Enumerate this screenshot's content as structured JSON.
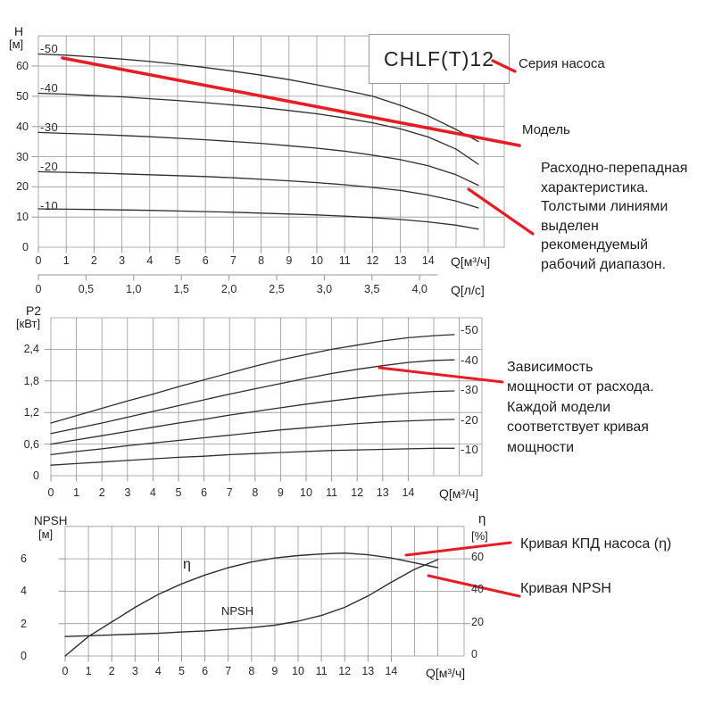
{
  "title_box": {
    "label": "CHLF(T)12"
  },
  "annotations": {
    "series": "Серия насоса",
    "model": "Модель",
    "flow_note": "Расходно-перепадная\nхарактеристика.\nТолстыми линиями\nвыделен\nрекомендуемый\nрабочий диапазон.",
    "power_note": "Зависимость\nмощности от расхода.\nКаждой модели\nсоответствует кривая\nмощности",
    "efficiency_note": "Кривая КПД насоса (η)",
    "npsh_note": "Кривая NPSH"
  },
  "axes": {
    "top": {
      "y_label": "H",
      "y_unit": "[м]",
      "x_unit": "Q[м³/ч]",
      "x2_unit": "Q[л/с]",
      "y_ticks": [
        "0",
        "10",
        "20",
        "30",
        "40",
        "50",
        "60"
      ],
      "x_ticks": [
        "0",
        "1",
        "2",
        "3",
        "4",
        "5",
        "6",
        "7",
        "8",
        "9",
        "10",
        "11",
        "12",
        "13",
        "14"
      ],
      "x2_ticks": [
        "0",
        "0,5",
        "1,0",
        "1,5",
        "2,0",
        "2,5",
        "3,0",
        "3,5",
        "4,0"
      ],
      "curve_labels": [
        "-50",
        "-40",
        "-30",
        "-20",
        "-10"
      ]
    },
    "middle": {
      "y_label": "P2",
      "y_unit": "[кВт]",
      "x_unit": "Q[м³/ч]",
      "y_ticks": [
        "0",
        "0,6",
        "1,2",
        "1,8",
        "2,4"
      ],
      "x_ticks": [
        "0",
        "1",
        "2",
        "3",
        "4",
        "5",
        "6",
        "7",
        "8",
        "9",
        "10",
        "11",
        "12",
        "13",
        "14"
      ],
      "curve_labels": [
        "-50",
        "-40",
        "-30",
        "-20",
        "-10"
      ]
    },
    "bottom": {
      "y_label": "NPSH",
      "y_unit": "[м]",
      "y2_label": "η",
      "y2_unit": "[%]",
      "x_unit": "Q[м³/ч]",
      "y_ticks": [
        "0",
        "2",
        "4",
        "6"
      ],
      "y2_ticks": [
        "0",
        "20",
        "40",
        "60"
      ],
      "x_ticks": [
        "0",
        "1",
        "2",
        "3",
        "4",
        "5",
        "6",
        "7",
        "8",
        "9",
        "10",
        "11",
        "12",
        "13",
        "14"
      ],
      "eta_curve_label": "η",
      "npsh_curve_label": "NPSH"
    }
  },
  "colors": {
    "accent_red": "#e81c25",
    "curve": "#2e2e2e",
    "grid": "#989898",
    "text": "#1f1f1f"
  },
  "chart_data": [
    {
      "type": "line",
      "title": "CHLF(T)12 head vs flow",
      "xlabel": "Q[м³/ч]",
      "x2label": "Q[л/с]",
      "ylabel": "H [м]",
      "xlim": [
        0,
        16.7
      ],
      "ylim": [
        0,
        70
      ],
      "grid": true,
      "x2_ticks": [
        0,
        0.5,
        1.0,
        1.5,
        2.0,
        2.5,
        3.0,
        3.5,
        4.0
      ],
      "x": [
        0,
        1,
        2,
        3,
        4,
        5,
        6,
        7,
        8,
        9,
        10,
        11,
        12,
        13,
        14,
        15,
        15.8
      ],
      "series": [
        {
          "name": "-50",
          "values": [
            64,
            63.6,
            63,
            62.3,
            61.5,
            60.6,
            59.5,
            58.3,
            57,
            55.5,
            53.8,
            52,
            50,
            47,
            43.5,
            39,
            35
          ]
        },
        {
          "name": "-40",
          "values": [
            51,
            50.7,
            50.2,
            49.8,
            49.2,
            48.6,
            47.9,
            47.1,
            46.3,
            45.3,
            44.2,
            42.8,
            41.2,
            39.2,
            36.5,
            32.5,
            27.5
          ]
        },
        {
          "name": "-30",
          "values": [
            38,
            37.7,
            37.4,
            37,
            36.6,
            36.1,
            35.6,
            35,
            34.4,
            33.6,
            32.8,
            31.8,
            30.5,
            29,
            27,
            24,
            20.5
          ]
        },
        {
          "name": "-20",
          "values": [
            25,
            24.8,
            24.6,
            24.3,
            24,
            23.7,
            23.4,
            23,
            22.5,
            22,
            21.4,
            20.7,
            19.8,
            18.8,
            17.3,
            15.3,
            13
          ]
        },
        {
          "name": "-10",
          "values": [
            12.7,
            12.6,
            12.5,
            12.35,
            12.2,
            12,
            11.8,
            11.6,
            11.3,
            11,
            10.7,
            10.3,
            9.8,
            9.2,
            8.4,
            7.3,
            6
          ]
        }
      ]
    },
    {
      "type": "line",
      "title": "Power vs flow",
      "xlabel": "Q[м³/ч]",
      "ylabel": "P2 [кВт]",
      "xlim": [
        0,
        16.9
      ],
      "ylim": [
        0,
        3.0
      ],
      "grid": true,
      "x": [
        0,
        1,
        2,
        3,
        4,
        5,
        6,
        7,
        8,
        9,
        10,
        11,
        12,
        13,
        14,
        15,
        15.8
      ],
      "series": [
        {
          "name": "-50",
          "values": [
            1.0,
            1.14,
            1.28,
            1.42,
            1.55,
            1.69,
            1.82,
            1.95,
            2.08,
            2.2,
            2.3,
            2.4,
            2.48,
            2.56,
            2.62,
            2.66,
            2.68
          ]
        },
        {
          "name": "-40",
          "values": [
            0.8,
            0.9,
            1.0,
            1.11,
            1.22,
            1.33,
            1.44,
            1.55,
            1.65,
            1.75,
            1.85,
            1.94,
            2.02,
            2.09,
            2.15,
            2.19,
            2.2
          ]
        },
        {
          "name": "-30",
          "values": [
            0.6,
            0.68,
            0.76,
            0.84,
            0.92,
            1.0,
            1.07,
            1.15,
            1.22,
            1.29,
            1.36,
            1.42,
            1.48,
            1.53,
            1.57,
            1.6,
            1.61
          ]
        },
        {
          "name": "-20",
          "values": [
            0.4,
            0.46,
            0.51,
            0.57,
            0.62,
            0.67,
            0.72,
            0.77,
            0.82,
            0.87,
            0.91,
            0.95,
            0.99,
            1.02,
            1.04,
            1.06,
            1.07
          ]
        },
        {
          "name": "-10",
          "values": [
            0.2,
            0.23,
            0.26,
            0.29,
            0.32,
            0.35,
            0.37,
            0.4,
            0.42,
            0.44,
            0.46,
            0.48,
            0.49,
            0.5,
            0.51,
            0.52,
            0.52
          ]
        }
      ]
    },
    {
      "type": "line",
      "title": "Efficiency and NPSH vs flow",
      "xlabel": "Q[м³/ч]",
      "ylabel": "NPSH [м]",
      "y2label": "η [%]",
      "xlim": [
        0,
        17.1
      ],
      "ylim": [
        0,
        8
      ],
      "y2lim": [
        0,
        80
      ],
      "grid": true,
      "x": [
        0,
        1,
        2,
        3,
        4,
        5,
        6,
        7,
        8,
        9,
        10,
        11,
        12,
        13,
        14,
        15,
        16
      ],
      "series": [
        {
          "name": "η",
          "axis": "%",
          "values": [
            0,
            12,
            21,
            30,
            38,
            44.5,
            50,
            54.5,
            58,
            60.5,
            62,
            63,
            63.5,
            62.5,
            60.5,
            57.5,
            54.5
          ]
        },
        {
          "name": "NPSH",
          "axis": "м",
          "values": [
            1.2,
            1.25,
            1.3,
            1.35,
            1.4,
            1.48,
            1.55,
            1.65,
            1.75,
            1.9,
            2.15,
            2.5,
            3.0,
            3.7,
            4.55,
            5.35,
            5.95
          ]
        }
      ]
    }
  ]
}
